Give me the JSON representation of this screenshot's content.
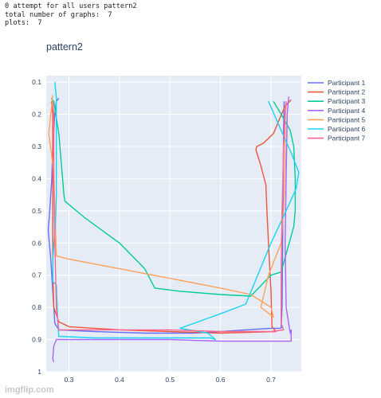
{
  "console": {
    "lines": [
      "0 attempt for all users pattern2",
      "total number of graphs:  7",
      "plots:  7"
    ]
  },
  "watermark": "imgflip.com",
  "colors": {
    "plot_bg": "#e5ecf6",
    "grid": "#ffffff"
  },
  "chart_data": {
    "type": "line",
    "title": "pattern2",
    "xlabel": "",
    "ylabel": "",
    "xlim": [
      0.255,
      0.76
    ],
    "ylim": [
      1.0,
      0.08
    ],
    "y_reversed": true,
    "grid": true,
    "legend_position": "top-right",
    "x_ticks": [
      0.3,
      0.4,
      0.5,
      0.6,
      0.7
    ],
    "x_tick_labels": [
      "0.3",
      "0.4",
      "0.5",
      "0.6",
      "0.7"
    ],
    "y_ticks": [
      0.1,
      0.2,
      0.3,
      0.4,
      0.5,
      0.6,
      0.7,
      0.8,
      0.9,
      1.0
    ],
    "y_tick_labels": [
      "0.1",
      "0.2",
      "0.3",
      "0.4",
      "0.5",
      "0.6",
      "0.7",
      "0.8",
      "0.9",
      "1"
    ],
    "series": [
      {
        "name": "Participant 1",
        "color": "#636efa",
        "points": [
          [
            0.28,
            0.15
          ],
          [
            0.275,
            0.16
          ],
          [
            0.272,
            0.2
          ],
          [
            0.268,
            0.3
          ],
          [
            0.266,
            0.4
          ],
          [
            0.262,
            0.5
          ],
          [
            0.259,
            0.56
          ],
          [
            0.264,
            0.65
          ],
          [
            0.268,
            0.75
          ],
          [
            0.272,
            0.85
          ],
          [
            0.28,
            0.87
          ],
          [
            0.35,
            0.875
          ],
          [
            0.45,
            0.88
          ],
          [
            0.55,
            0.88
          ],
          [
            0.65,
            0.87
          ],
          [
            0.7,
            0.865
          ],
          [
            0.72,
            0.865
          ],
          [
            0.722,
            0.8
          ],
          [
            0.723,
            0.6
          ],
          [
            0.724,
            0.4
          ],
          [
            0.725,
            0.25
          ],
          [
            0.726,
            0.16
          ]
        ]
      },
      {
        "name": "Participant 2",
        "color": "#ef553b",
        "points": [
          [
            0.74,
            0.155
          ],
          [
            0.728,
            0.175
          ],
          [
            0.718,
            0.21
          ],
          [
            0.705,
            0.26
          ],
          [
            0.685,
            0.29
          ],
          [
            0.672,
            0.3
          ],
          [
            0.67,
            0.31
          ],
          [
            0.68,
            0.36
          ],
          [
            0.69,
            0.42
          ],
          [
            0.692,
            0.5
          ],
          [
            0.695,
            0.6
          ],
          [
            0.7,
            0.75
          ],
          [
            0.702,
            0.86
          ],
          [
            0.71,
            0.875
          ],
          [
            0.6,
            0.88
          ],
          [
            0.5,
            0.875
          ],
          [
            0.4,
            0.87
          ],
          [
            0.3,
            0.86
          ],
          [
            0.28,
            0.845
          ],
          [
            0.27,
            0.8
          ],
          [
            0.268,
            0.7
          ],
          [
            0.268,
            0.6
          ],
          [
            0.268,
            0.5
          ],
          [
            0.268,
            0.4
          ],
          [
            0.268,
            0.3
          ],
          [
            0.268,
            0.2
          ],
          [
            0.265,
            0.16
          ]
        ]
      },
      {
        "name": "Participant 3",
        "color": "#00cc96",
        "points": [
          [
            0.265,
            0.15
          ],
          [
            0.27,
            0.16
          ],
          [
            0.28,
            0.26
          ],
          [
            0.29,
            0.45
          ],
          [
            0.292,
            0.47
          ],
          [
            0.33,
            0.52
          ],
          [
            0.4,
            0.6
          ],
          [
            0.45,
            0.68
          ],
          [
            0.47,
            0.74
          ],
          [
            0.52,
            0.75
          ],
          [
            0.6,
            0.76
          ],
          [
            0.66,
            0.765
          ],
          [
            0.7,
            0.7
          ],
          [
            0.72,
            0.69
          ],
          [
            0.745,
            0.55
          ],
          [
            0.748,
            0.5
          ],
          [
            0.748,
            0.4
          ],
          [
            0.745,
            0.3
          ],
          [
            0.738,
            0.25
          ],
          [
            0.72,
            0.2
          ],
          [
            0.705,
            0.16
          ]
        ]
      },
      {
        "name": "Participant 4",
        "color": "#ab63fa",
        "points": [
          [
            0.735,
            0.145
          ],
          [
            0.732,
            0.2
          ],
          [
            0.73,
            0.4
          ],
          [
            0.728,
            0.6
          ],
          [
            0.73,
            0.8
          ],
          [
            0.738,
            0.88
          ],
          [
            0.74,
            0.87
          ],
          [
            0.74,
            0.905
          ],
          [
            0.65,
            0.905
          ],
          [
            0.6,
            0.905
          ],
          [
            0.5,
            0.9
          ],
          [
            0.4,
            0.9
          ],
          [
            0.3,
            0.9
          ],
          [
            0.275,
            0.9
          ],
          [
            0.27,
            0.92
          ],
          [
            0.268,
            0.96
          ],
          [
            0.27,
            0.97
          ]
        ]
      },
      {
        "name": "Participant 5",
        "color": "#ffa15a",
        "points": [
          [
            0.268,
            0.14
          ],
          [
            0.26,
            0.26
          ],
          [
            0.27,
            0.38
          ],
          [
            0.272,
            0.5
          ],
          [
            0.275,
            0.64
          ],
          [
            0.3,
            0.65
          ],
          [
            0.4,
            0.68
          ],
          [
            0.5,
            0.71
          ],
          [
            0.6,
            0.74
          ],
          [
            0.66,
            0.76
          ],
          [
            0.68,
            0.78
          ],
          [
            0.7,
            0.8
          ],
          [
            0.705,
            0.83
          ],
          [
            0.68,
            0.8
          ],
          [
            0.695,
            0.7
          ],
          [
            0.72,
            0.6
          ],
          [
            0.725,
            0.5
          ],
          [
            0.728,
            0.35
          ],
          [
            0.728,
            0.22
          ],
          [
            0.73,
            0.16
          ]
        ]
      },
      {
        "name": "Participant 6",
        "color": "#19d3f3",
        "points": [
          [
            0.272,
            0.1
          ],
          [
            0.275,
            0.15
          ],
          [
            0.275,
            0.3
          ],
          [
            0.275,
            0.45
          ],
          [
            0.273,
            0.55
          ],
          [
            0.268,
            0.65
          ],
          [
            0.268,
            0.72
          ],
          [
            0.275,
            0.73
          ],
          [
            0.278,
            0.85
          ],
          [
            0.28,
            0.89
          ],
          [
            0.35,
            0.895
          ],
          [
            0.45,
            0.895
          ],
          [
            0.54,
            0.895
          ],
          [
            0.58,
            0.895
          ],
          [
            0.59,
            0.9
          ],
          [
            0.575,
            0.88
          ],
          [
            0.52,
            0.865
          ],
          [
            0.6,
            0.82
          ],
          [
            0.65,
            0.79
          ],
          [
            0.7,
            0.6
          ],
          [
            0.73,
            0.5
          ],
          [
            0.75,
            0.43
          ],
          [
            0.755,
            0.38
          ],
          [
            0.74,
            0.32
          ],
          [
            0.72,
            0.25
          ],
          [
            0.695,
            0.16
          ]
        ]
      },
      {
        "name": "Participant 7",
        "color": "#ff6692",
        "points": [
          [
            0.73,
            0.16
          ],
          [
            0.728,
            0.2
          ],
          [
            0.725,
            0.3
          ],
          [
            0.722,
            0.5
          ],
          [
            0.72,
            0.7
          ],
          [
            0.72,
            0.85
          ],
          [
            0.725,
            0.87
          ],
          [
            0.7,
            0.875
          ],
          [
            0.6,
            0.875
          ],
          [
            0.5,
            0.87
          ],
          [
            0.4,
            0.87
          ],
          [
            0.3,
            0.87
          ],
          [
            0.28,
            0.87
          ],
          [
            0.275,
            0.8
          ],
          [
            0.272,
            0.6
          ],
          [
            0.27,
            0.4
          ],
          [
            0.27,
            0.2
          ],
          [
            0.268,
            0.16
          ]
        ]
      }
    ]
  }
}
